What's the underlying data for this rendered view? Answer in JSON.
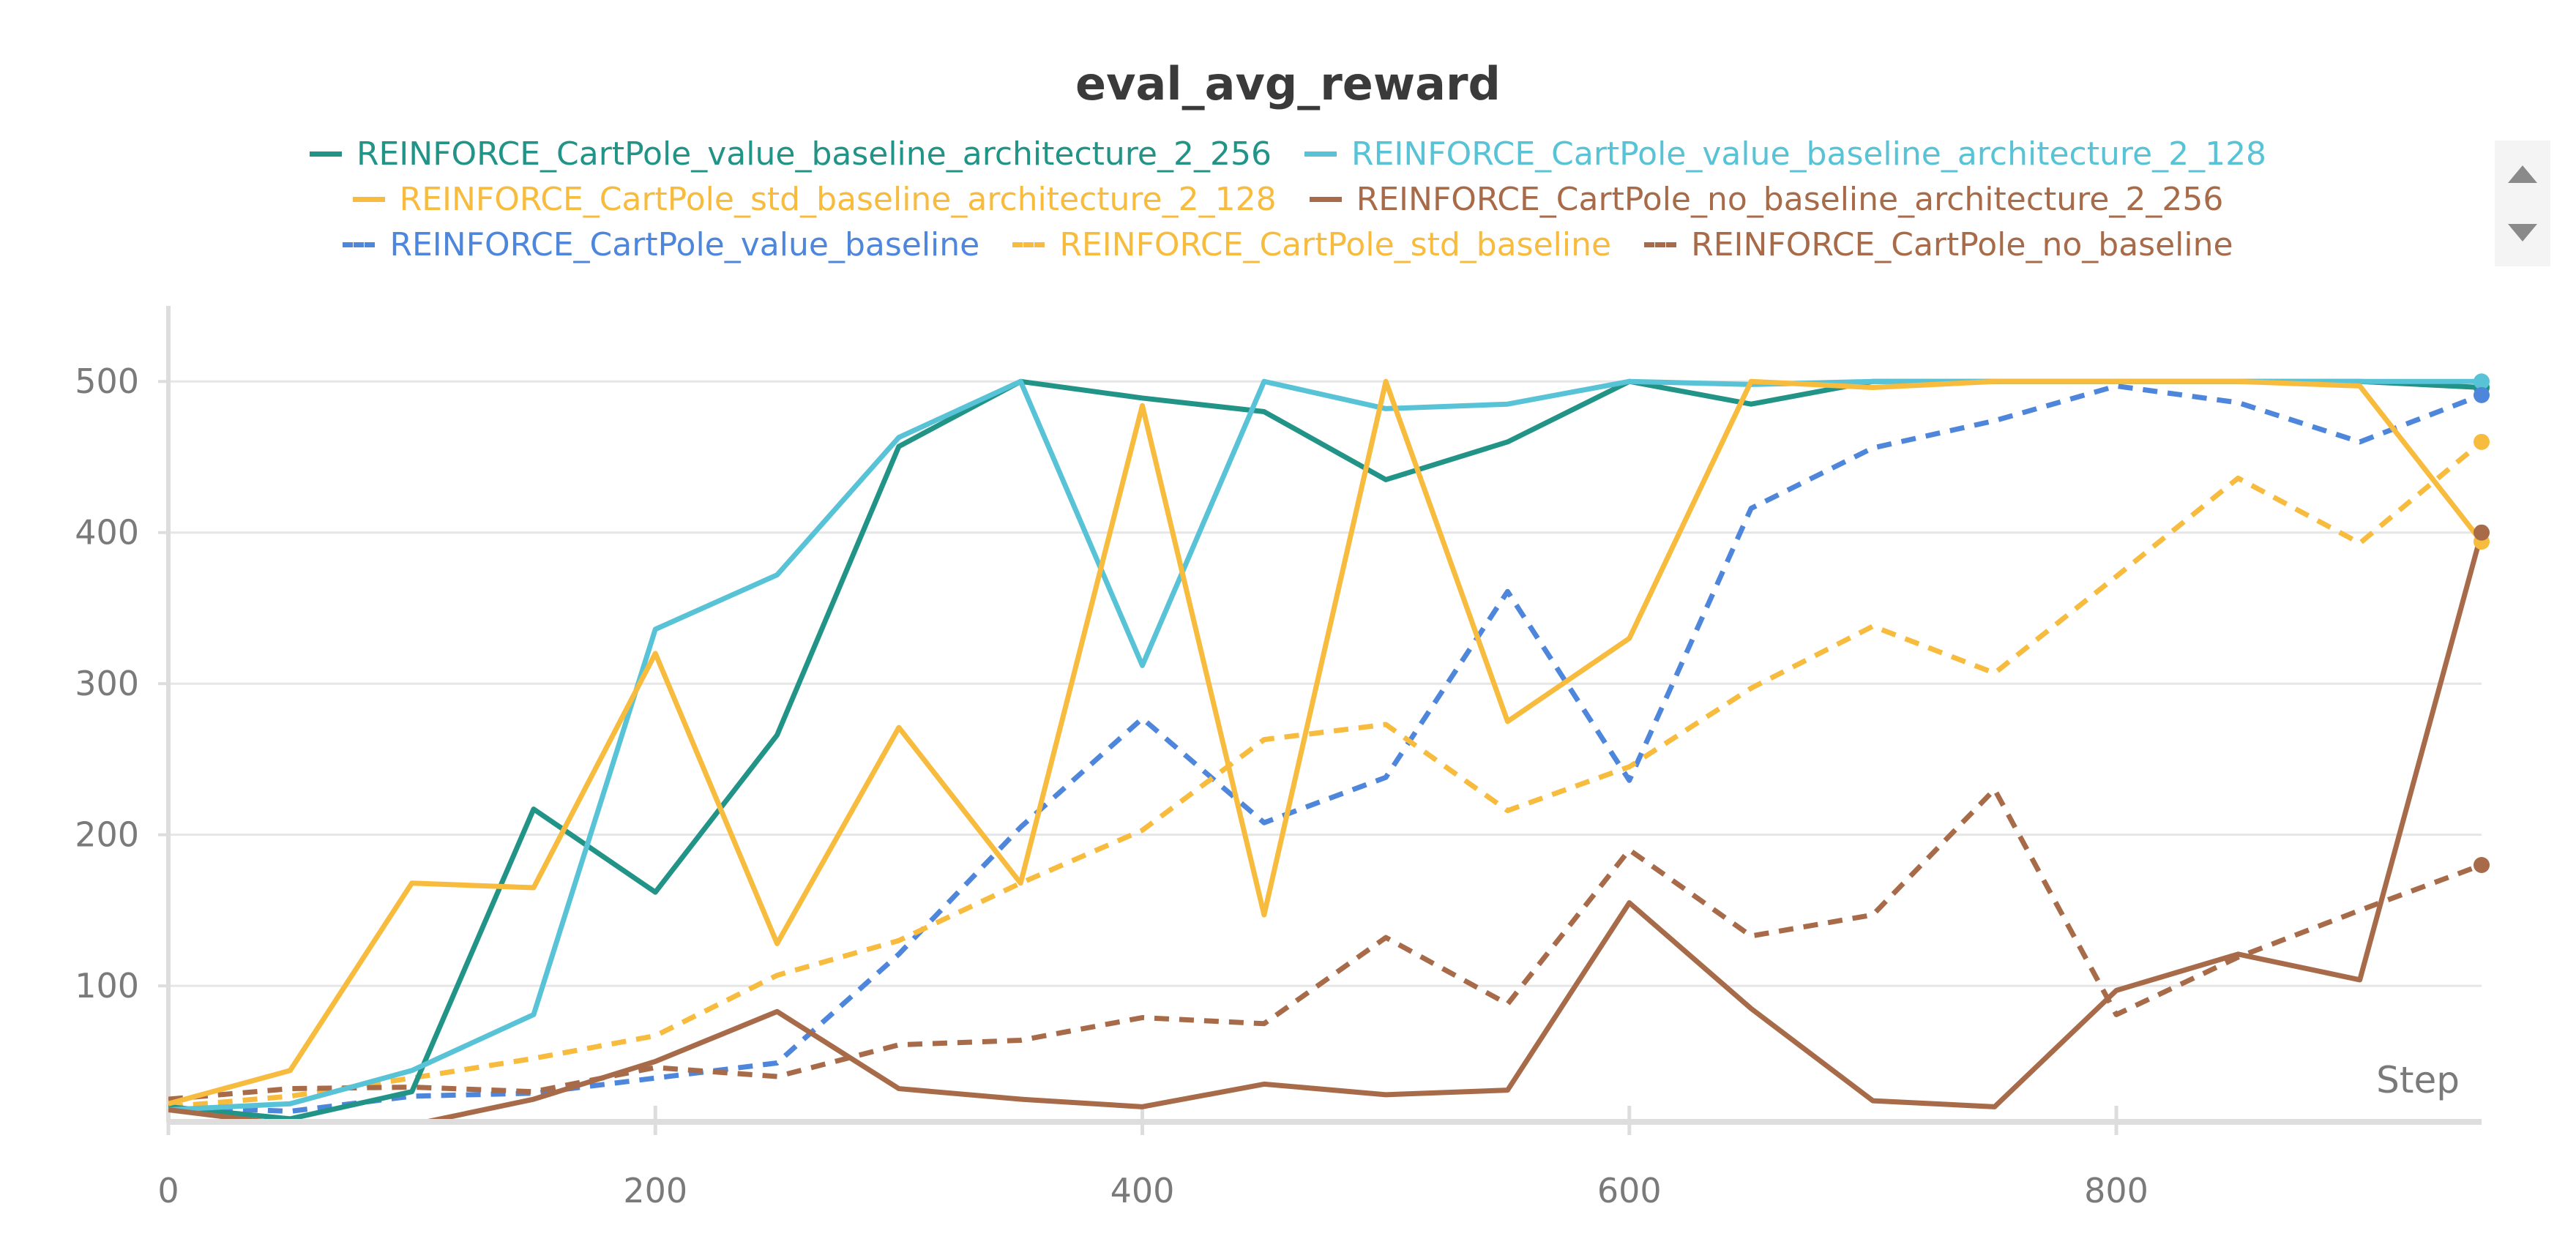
{
  "chart_data": {
    "type": "line",
    "title": "eval_avg_reward",
    "xlabel": "Step",
    "ylabel": "",
    "xlim": [
      0,
      950
    ],
    "ylim": [
      10,
      550
    ],
    "xticks": [
      0,
      200,
      400,
      600,
      800
    ],
    "yticks": [
      100,
      200,
      300,
      400,
      500
    ],
    "grid": true,
    "legend_position": "top",
    "x": [
      0,
      50,
      100,
      150,
      200,
      250,
      300,
      350,
      400,
      450,
      500,
      550,
      600,
      650,
      700,
      750,
      800,
      850,
      900,
      950
    ],
    "series": [
      {
        "name": "REINFORCE_CartPole_value_baseline_architecture_2_256",
        "color": "#229487",
        "dash": false,
        "values": [
          20,
          12,
          30,
          217,
          162,
          266,
          457,
          500,
          489,
          480,
          435,
          460,
          500,
          485,
          500,
          500,
          500,
          500,
          500,
          496
        ]
      },
      {
        "name": "REINFORCE_CartPole_value_baseline_architecture_2_128",
        "color": "#58c3d6",
        "dash": false,
        "values": [
          18,
          22,
          44,
          81,
          336,
          372,
          463,
          500,
          312,
          500,
          482,
          485,
          500,
          498,
          500,
          500,
          500,
          500,
          500,
          500
        ]
      },
      {
        "name": "REINFORCE_CartPole_std_baseline_architecture_2_128",
        "color": "#f7bb3e",
        "dash": false,
        "values": [
          22,
          44,
          168,
          165,
          320,
          128,
          271,
          168,
          484,
          147,
          500,
          275,
          330,
          500,
          496,
          500,
          500,
          500,
          497,
          394
        ]
      },
      {
        "name": "REINFORCE_CartPole_no_baseline_architecture_2_256",
        "color": "#a86b4a",
        "dash": false,
        "values": [
          18,
          8,
          8,
          25,
          50,
          83,
          32,
          25,
          20,
          35,
          28,
          31,
          155,
          85,
          24,
          20,
          97,
          121,
          104,
          400
        ]
      },
      {
        "name": "REINFORCE_CartPole_value_baseline",
        "color": "#4e86dc",
        "dash": true,
        "values": [
          20,
          17,
          27,
          29,
          39,
          49,
          121,
          205,
          277,
          208,
          238,
          361,
          236,
          416,
          456,
          474,
          497,
          486,
          460,
          491
        ]
      },
      {
        "name": "REINFORCE_CartPole_std_baseline",
        "color": "#f7bb3e",
        "dash": true,
        "values": [
          20,
          27,
          39,
          52,
          67,
          107,
          130,
          168,
          203,
          263,
          273,
          216,
          245,
          297,
          338,
          307,
          371,
          436,
          393,
          460
        ]
      },
      {
        "name": "REINFORCE_CartPole_no_baseline",
        "color": "#a86b4a",
        "dash": true,
        "values": [
          25,
          32,
          33,
          30,
          46,
          40,
          61,
          64,
          79,
          75,
          132,
          88,
          190,
          133,
          147,
          230,
          81,
          119,
          150,
          180
        ]
      }
    ]
  },
  "legend_controls": {
    "up_icon": "triangle-up-icon",
    "down_icon": "triangle-down-icon",
    "panel_color": "#f4f4f4",
    "arrow_color": "#8a8a8a"
  },
  "style": {
    "grid_color": "#e6e6e6",
    "axis_color": "#dddddd",
    "text_color": "#7a7a7a",
    "title_color": "#3a3a3a"
  }
}
